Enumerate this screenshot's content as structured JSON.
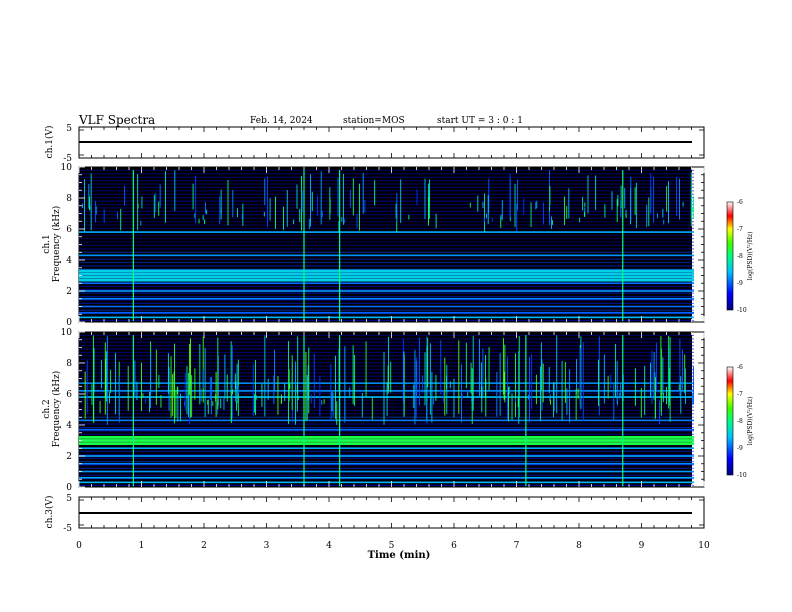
{
  "header": {
    "title": "VLF Spectra",
    "date": "Feb. 14, 2024",
    "station": "station=MOS",
    "start": "start UT =  3 : 0 : 1"
  },
  "chart_data": [
    {
      "type": "line",
      "panel": "ch1-waveform",
      "ylabel": "ch.1(V)",
      "ylim": [
        -5,
        5
      ],
      "y_ticks": [
        "5",
        "-5"
      ],
      "trace_level": 0
    },
    {
      "type": "heatmap",
      "panel": "ch1-spectrogram",
      "ylabel_line1": "ch.1",
      "ylabel_line2": "Frequency (kHz)",
      "xlim": [
        0,
        10
      ],
      "ylim": [
        0,
        10
      ],
      "y_ticks": [
        "0",
        "2",
        "4",
        "6",
        "8",
        "10"
      ],
      "data_extent_min": 9.84,
      "colorbar": {
        "label": "log(PSD)(V²/Hz)",
        "range": [
          -10,
          -6
        ],
        "ticks": [
          "-6",
          "-7",
          "-8",
          "-9",
          "-10"
        ]
      },
      "horizontal_bands_khz": [
        0.3,
        0.6,
        1.0,
        1.5,
        2.0,
        2.5,
        2.7,
        2.9,
        3.1,
        3.3,
        4.3,
        5.8
      ],
      "strong_impulses_min": [
        0.87,
        3.6,
        4.17,
        8.7
      ]
    },
    {
      "type": "heatmap",
      "panel": "ch2-spectrogram",
      "ylabel_line1": "ch.2",
      "ylabel_line2": "Frequency (kHz)",
      "xlim": [
        0,
        10
      ],
      "ylim": [
        0,
        10
      ],
      "y_ticks": [
        "0",
        "2",
        "4",
        "6",
        "8",
        "10"
      ],
      "data_extent_min": 9.84,
      "colorbar": {
        "label": "log(PSD)(V²/Hz)",
        "range": [
          -10,
          -6
        ],
        "ticks": [
          "-6",
          "-7",
          "-8",
          "-9",
          "-10"
        ]
      },
      "horizontal_bands_khz": [
        0.3,
        0.6,
        1.0,
        1.5,
        2.0,
        2.5,
        2.8,
        3.0,
        3.2,
        3.7,
        4.3,
        5.8,
        6.2,
        6.7
      ],
      "strong_impulses_min": [
        0.87,
        3.6,
        4.17,
        7.15,
        8.7
      ]
    },
    {
      "type": "line",
      "panel": "ch3-waveform",
      "ylabel": "ch.3(V)",
      "ylim": [
        -5,
        5
      ],
      "y_ticks": [
        "5",
        "-5"
      ],
      "trace_level": 0
    }
  ],
  "x_axis": {
    "label": "Time (min)",
    "range": [
      0,
      10
    ],
    "ticks": [
      "0",
      "1",
      "2",
      "3",
      "4",
      "5",
      "6",
      "7",
      "8",
      "9",
      "10"
    ]
  },
  "colors": {
    "background": "#000000",
    "colormap": [
      "#000080",
      "#0000ff",
      "#0080ff",
      "#00ffff",
      "#00ff00",
      "#ffff00",
      "#ff0000",
      "#ffffff"
    ]
  }
}
